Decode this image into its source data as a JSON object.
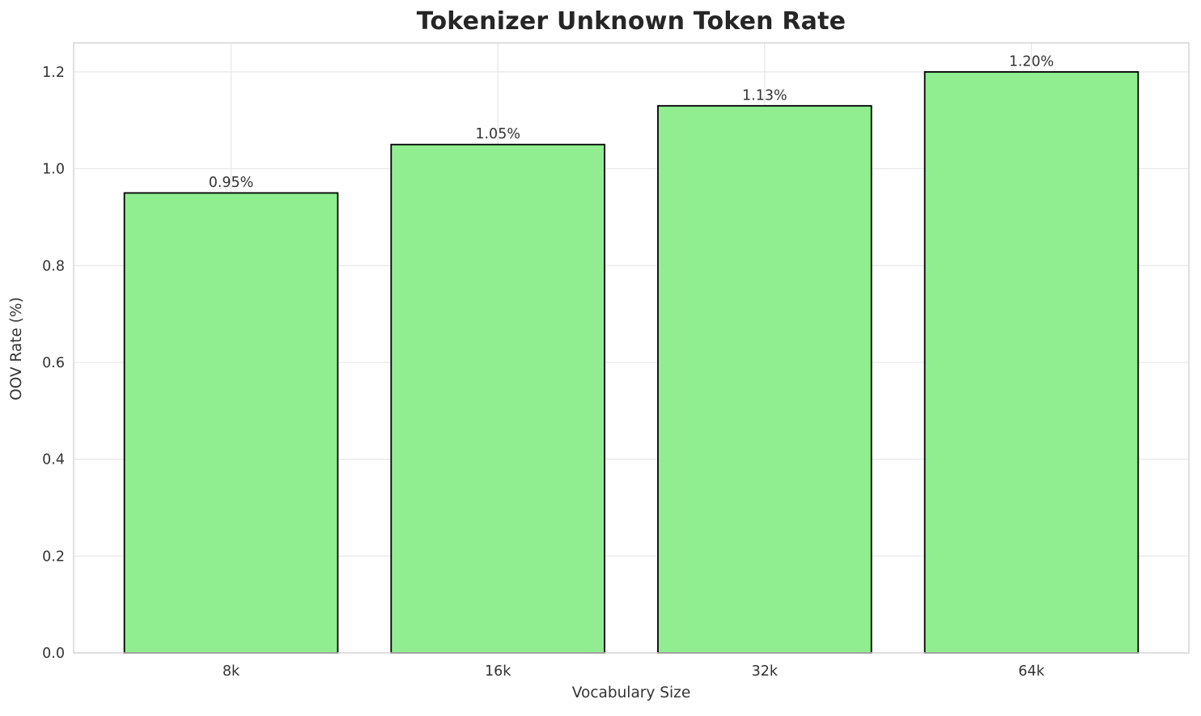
{
  "title": "Tokenizer Unknown Token Rate",
  "chart_data": {
    "type": "bar",
    "title": "Tokenizer Unknown Token Rate",
    "xlabel": "Vocabulary Size",
    "ylabel": "OOV Rate (%)",
    "categories": [
      "8k",
      "16k",
      "32k",
      "64k"
    ],
    "values": [
      0.95,
      1.05,
      1.13,
      1.2
    ],
    "bar_labels": [
      "0.95%",
      "1.05%",
      "1.13%",
      "1.20%"
    ],
    "ylim": [
      0,
      1.26
    ],
    "yticks": [
      "0.0",
      "0.2",
      "0.4",
      "0.6",
      "0.8",
      "1.0",
      "1.2"
    ],
    "grid": true,
    "legend": "none",
    "bar_color": "#90EE90",
    "bar_edge_color": "#000000"
  },
  "colors": {
    "bar_fill": "#90EE90",
    "bar_edge": "#000000",
    "grid_line": "#e7e7e7",
    "spine": "#d3d3d3",
    "tick_text": "#333333",
    "title_text": "#262626",
    "background": "#ffffff"
  }
}
